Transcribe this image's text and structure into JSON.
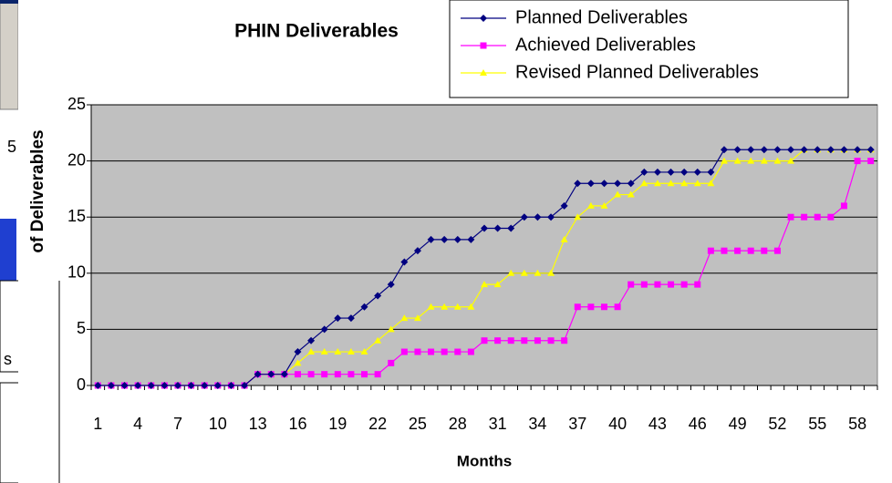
{
  "chart_data": {
    "type": "line",
    "title": "PHIN Deliverables",
    "xlabel": "Months",
    "ylabel": "of Deliverables",
    "categories": [
      1,
      null,
      null,
      4,
      null,
      null,
      7,
      null,
      null,
      10,
      null,
      null,
      13,
      null,
      null,
      16,
      null,
      null,
      19,
      null,
      null,
      22,
      null,
      null,
      25,
      null,
      null,
      28,
      null,
      null,
      31,
      null,
      null,
      34,
      null,
      null,
      37,
      null,
      null,
      40,
      null,
      null,
      43,
      null,
      null,
      46,
      null,
      null,
      49,
      null,
      null,
      52,
      null,
      null,
      55,
      null,
      null,
      58,
      null
    ],
    "series": [
      {
        "name": "Planned Deliverables",
        "color": "#000080",
        "marker": "diamond",
        "values": [
          0,
          0,
          0,
          0,
          0,
          0,
          0,
          0,
          0,
          0,
          0,
          0,
          1,
          1,
          1,
          3,
          4,
          5,
          6,
          6,
          7,
          8,
          9,
          11,
          12,
          13,
          13,
          13,
          13,
          14,
          14,
          14,
          15,
          15,
          15,
          16,
          18,
          18,
          18,
          18,
          18,
          19,
          19,
          19,
          19,
          19,
          19,
          21,
          21,
          21,
          21,
          21,
          21,
          21,
          21,
          21,
          21,
          21,
          21
        ]
      },
      {
        "name": "Achieved Deliverables",
        "color": "#ff00ff",
        "marker": "square",
        "values": [
          0,
          0,
          0,
          0,
          0,
          0,
          0,
          0,
          0,
          0,
          0,
          0,
          1,
          1,
          1,
          1,
          1,
          1,
          1,
          1,
          1,
          1,
          2,
          3,
          3,
          3,
          3,
          3,
          3,
          4,
          4,
          4,
          4,
          4,
          4,
          4,
          7,
          7,
          7,
          7,
          9,
          9,
          9,
          9,
          9,
          9,
          12,
          12,
          12,
          12,
          12,
          12,
          15,
          15,
          15,
          15,
          16,
          20,
          20
        ]
      },
      {
        "name": "Revised Planned Deliverables",
        "color": "#ffff00",
        "marker": "triangle",
        "values": [
          0,
          0,
          0,
          0,
          0,
          0,
          0,
          0,
          0,
          0,
          0,
          0,
          1,
          1,
          1,
          2,
          3,
          3,
          3,
          3,
          3,
          4,
          5,
          6,
          6,
          7,
          7,
          7,
          7,
          9,
          9,
          10,
          10,
          10,
          10,
          13,
          15,
          16,
          16,
          17,
          17,
          18,
          18,
          18,
          18,
          18,
          18,
          20,
          20,
          20,
          20,
          20,
          20,
          21,
          21,
          21,
          21,
          21,
          21
        ]
      }
    ],
    "ylim": [
      0,
      25
    ],
    "yticks": [
      0,
      5,
      10,
      15,
      20,
      25
    ],
    "grid": true,
    "legend": "top-right",
    "background_text": [
      "5",
      "s"
    ]
  }
}
